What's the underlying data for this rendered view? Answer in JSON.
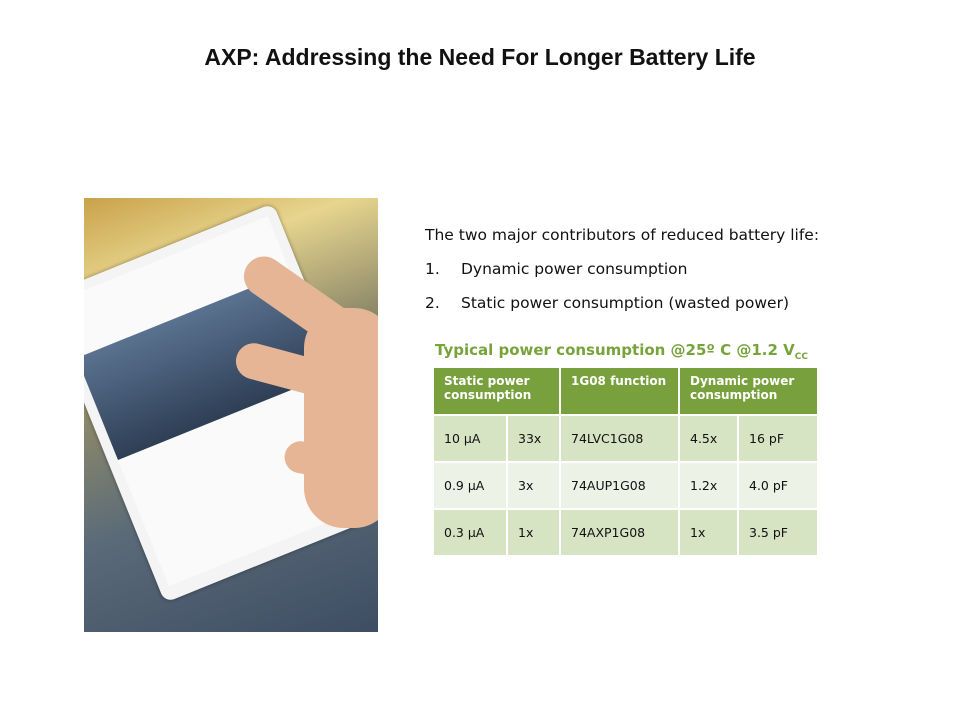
{
  "title": "AXP: Addressing the Need For Longer Battery Life",
  "intro": "The two major contributors of reduced battery life:",
  "bullets": [
    {
      "num": "1.",
      "text": "Dynamic power consumption"
    },
    {
      "num": "2.",
      "text": "Static power consumption (wasted power)"
    }
  ],
  "table_title": {
    "main": "Typical power consumption @25º C @1.2 V",
    "sub": "CC"
  },
  "table": {
    "headers": [
      "Static power consumption",
      "1G08 function",
      "Dynamic power consumption"
    ],
    "rows": [
      [
        "10 µA",
        "33x",
        "74LVC1G08",
        "4.5x",
        "16 pF"
      ],
      [
        "0.9 µA",
        "3x",
        "74AUP1G08",
        "1.2x",
        "4.0 pF"
      ],
      [
        "0.3 µA",
        "1x",
        "74AXP1G08",
        "1x",
        "3.5 pF"
      ]
    ]
  },
  "colors": {
    "header": "#78a03c",
    "row_dark": "#d7e4c4",
    "row_light": "#ecf2e5",
    "title_green": "#76a33a"
  }
}
